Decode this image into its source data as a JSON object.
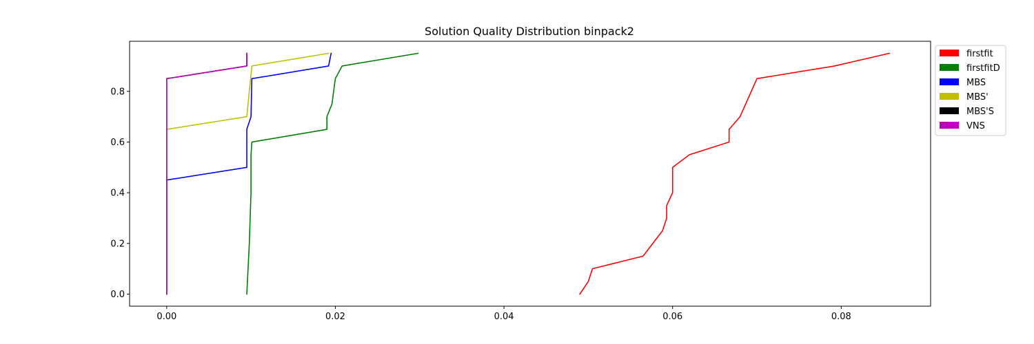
{
  "chart_data": {
    "type": "line",
    "title": "Solution Quality Distribution binpack2",
    "xlabel": "",
    "ylabel": "",
    "xlim": [
      -0.0044,
      0.0906
    ],
    "ylim": [
      -0.0475,
      0.9975
    ],
    "x_ticks": [
      0.0,
      0.02,
      0.04,
      0.06,
      0.08
    ],
    "x_tick_labels": [
      "0.00",
      "0.02",
      "0.04",
      "0.06",
      "0.08"
    ],
    "y_ticks": [
      0.0,
      0.2,
      0.4,
      0.6,
      0.8
    ],
    "y_tick_labels": [
      "0.0",
      "0.2",
      "0.4",
      "0.6",
      "0.8"
    ],
    "grid": false,
    "legend_position": "outside-right-top",
    "series": [
      {
        "name": "firstfit",
        "color": "#ff0000",
        "points": [
          [
            0.049,
            0.0
          ],
          [
            0.05,
            0.05
          ],
          [
            0.0505,
            0.1
          ],
          [
            0.0565,
            0.15
          ],
          [
            0.0588,
            0.25
          ],
          [
            0.0593,
            0.3
          ],
          [
            0.0593,
            0.35
          ],
          [
            0.06,
            0.4
          ],
          [
            0.06,
            0.5
          ],
          [
            0.062,
            0.55
          ],
          [
            0.0667,
            0.6
          ],
          [
            0.0667,
            0.65
          ],
          [
            0.068,
            0.7
          ],
          [
            0.07,
            0.85
          ],
          [
            0.0792,
            0.9
          ],
          [
            0.0857,
            0.95
          ]
        ]
      },
      {
        "name": "firstfitD",
        "color": "#008000",
        "points": [
          [
            0.0095,
            0.0
          ],
          [
            0.0098,
            0.2
          ],
          [
            0.01,
            0.4
          ],
          [
            0.01,
            0.55
          ],
          [
            0.0101,
            0.6
          ],
          [
            0.019,
            0.65
          ],
          [
            0.019,
            0.7
          ],
          [
            0.0196,
            0.75
          ],
          [
            0.02,
            0.85
          ],
          [
            0.0208,
            0.9
          ],
          [
            0.0298,
            0.95
          ]
        ]
      },
      {
        "name": "MBS",
        "color": "#0000ff",
        "points": [
          [
            0.0,
            0.0
          ],
          [
            0.0,
            0.45
          ],
          [
            0.0095,
            0.5
          ],
          [
            0.0095,
            0.65
          ],
          [
            0.01,
            0.7
          ],
          [
            0.0101,
            0.85
          ],
          [
            0.0192,
            0.9
          ],
          [
            0.0195,
            0.95
          ]
        ]
      },
      {
        "name": "MBS'",
        "color": "#bfbf00",
        "points": [
          [
            0.0,
            0.0
          ],
          [
            0.0,
            0.65
          ],
          [
            0.0095,
            0.7
          ],
          [
            0.0101,
            0.9
          ],
          [
            0.0192,
            0.95
          ]
        ]
      },
      {
        "name": "MBS'S",
        "color": "#000000",
        "points": [
          [
            0.0,
            0.0
          ],
          [
            0.0,
            0.85
          ],
          [
            0.0095,
            0.9
          ],
          [
            0.0095,
            0.95
          ]
        ]
      },
      {
        "name": "VNS",
        "color": "#bf00bf",
        "points": [
          [
            0.0,
            0.0
          ],
          [
            0.0,
            0.85
          ],
          [
            0.0095,
            0.9
          ],
          [
            0.0095,
            0.95
          ]
        ]
      }
    ]
  }
}
